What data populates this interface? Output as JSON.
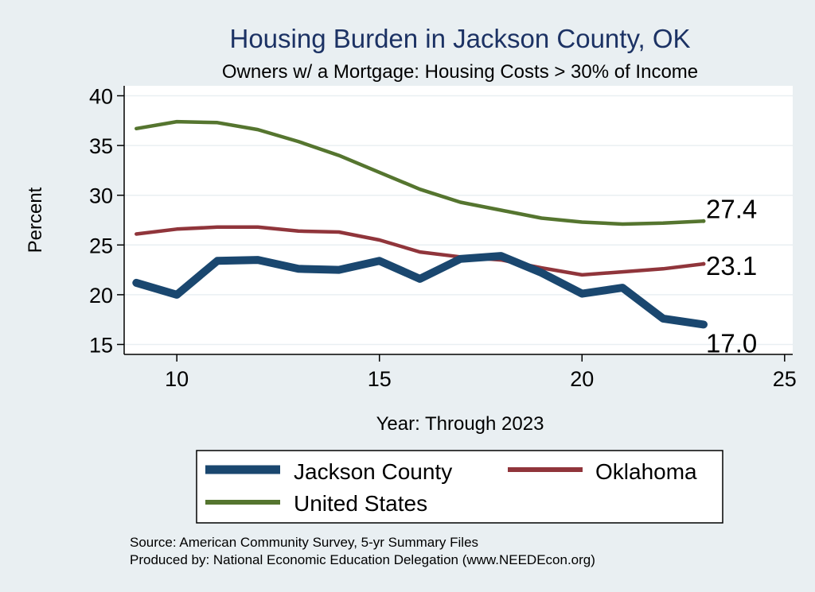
{
  "colors": {
    "background": "#e9eff2",
    "plot_background": "#ffffff",
    "grid": "#e9eff2",
    "title": "#1c3264",
    "jackson": "#1a476f",
    "oklahoma": "#90353b",
    "us": "#55752f"
  },
  "chart_data": {
    "type": "line",
    "title": "Housing Burden in Jackson County, OK",
    "subtitle": "Owners w/ a Mortgage: Housing Costs > 30% of Income",
    "xlabel": "Year: Through 2023",
    "ylabel": "Percent",
    "xlim": [
      8.7,
      25.2
    ],
    "ylim": [
      14,
      41
    ],
    "xticks": [
      10,
      15,
      20,
      25
    ],
    "yticks": [
      15,
      20,
      25,
      30,
      35,
      40
    ],
    "grid": true,
    "legend_position": "bottom",
    "series": [
      {
        "key": "jackson",
        "name": "Jackson County",
        "x": [
          9,
          10,
          11,
          12,
          13,
          14,
          15,
          16,
          17,
          18,
          19,
          20,
          21,
          22,
          23
        ],
        "values": [
          21.2,
          20.0,
          23.4,
          23.5,
          22.6,
          22.5,
          23.4,
          21.6,
          23.6,
          23.9,
          22.2,
          20.1,
          20.7,
          17.6,
          17.0
        ],
        "end_label": "17.0"
      },
      {
        "key": "oklahoma",
        "name": "Oklahoma",
        "x": [
          9,
          10,
          11,
          12,
          13,
          14,
          15,
          16,
          17,
          18,
          19,
          20,
          21,
          22,
          23
        ],
        "values": [
          26.1,
          26.6,
          26.8,
          26.8,
          26.4,
          26.3,
          25.5,
          24.3,
          23.8,
          23.5,
          22.7,
          22.0,
          22.3,
          22.6,
          23.1
        ],
        "end_label": "23.1"
      },
      {
        "key": "us",
        "name": "United States",
        "x": [
          9,
          10,
          11,
          12,
          13,
          14,
          15,
          16,
          17,
          18,
          19,
          20,
          21,
          22,
          23
        ],
        "values": [
          36.7,
          37.4,
          37.3,
          36.6,
          35.4,
          34.0,
          32.3,
          30.6,
          29.3,
          28.5,
          27.7,
          27.3,
          27.1,
          27.2,
          27.4
        ],
        "end_label": "27.4"
      }
    ]
  },
  "footnotes": {
    "source": "Source: American Community Survey, 5-yr Summary Files",
    "producer": "Produced by: National Economic Education Delegation (www.NEEDEcon.org)"
  }
}
